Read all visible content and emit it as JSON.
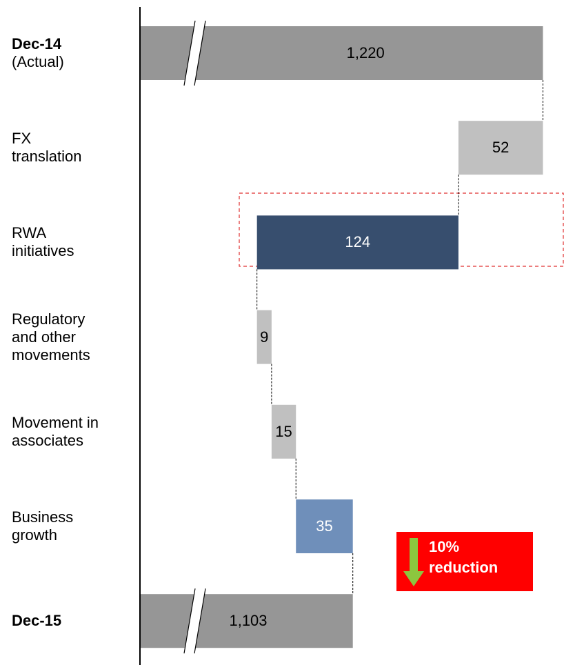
{
  "chart_data": {
    "type": "waterfall",
    "categories": [
      "Dec-14\n(Actual)",
      "FX\ntranslation",
      "RWA\ninitiatives",
      "Regulatory\nand other\nmovements",
      "Movement in\nassociates",
      "Business\ngrowth",
      "Dec-15"
    ],
    "values": [
      1220,
      -52,
      -124,
      9,
      15,
      35,
      1103
    ],
    "value_labels": [
      "1,220",
      "52",
      "124",
      "9",
      "15",
      "35",
      "1,103"
    ],
    "colors": [
      "#969696",
      "#c0c0c0",
      "#374e6e",
      "#c0c0c0",
      "#c0c0c0",
      "#6f8fba",
      "#969696"
    ],
    "label_colors": [
      "#000000",
      "#000000",
      "#ffffff",
      "#000000",
      "#000000",
      "#ffffff",
      "#000000"
    ],
    "xlim": [
      972,
      1230
    ],
    "annotation": "10%\nreduction"
  }
}
